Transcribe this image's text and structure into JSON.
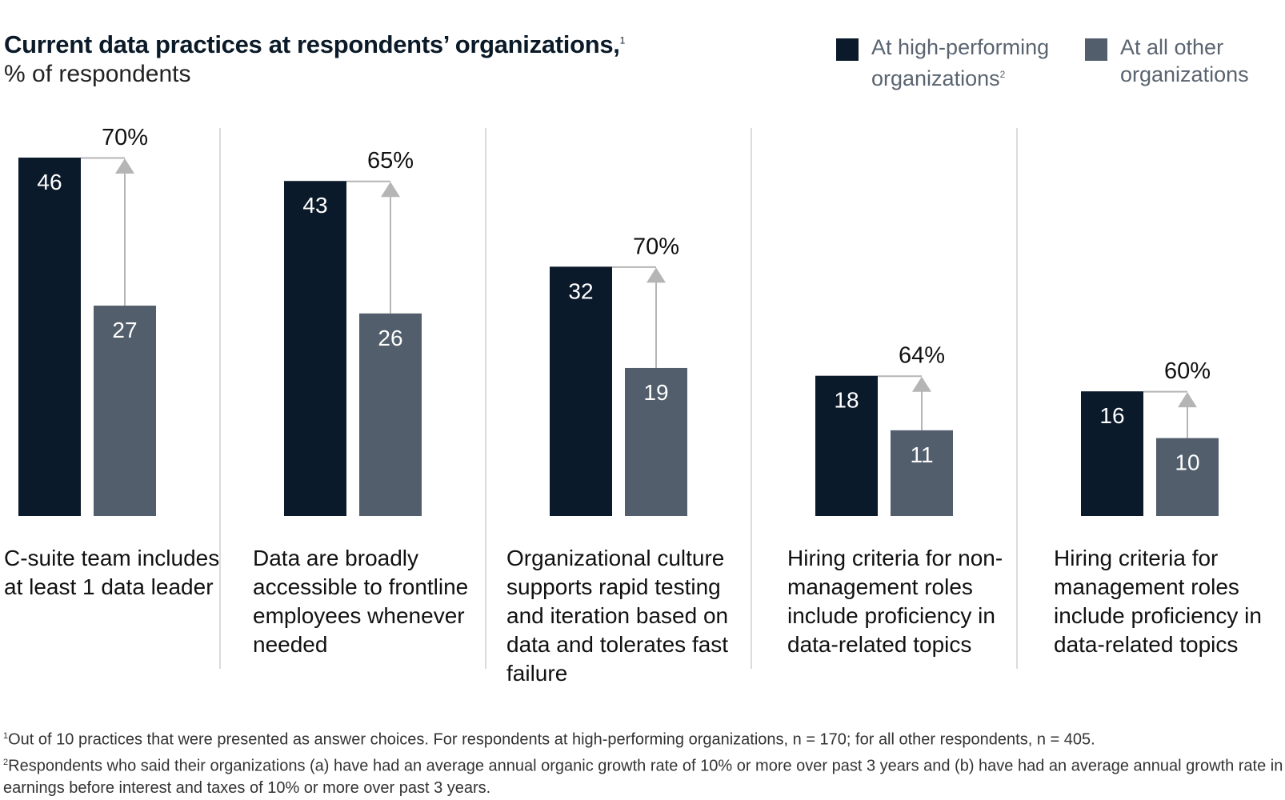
{
  "title": "Current data practices at respondents’ organizations,",
  "title_footnote_mark": "1",
  "subtitle": "% of respondents",
  "legend": [
    {
      "label": "At high-performing organizations",
      "footnote_mark": "2",
      "color": "#0b1a2b"
    },
    {
      "label": "At all other organizations",
      "footnote_mark": "",
      "color": "#525e6b"
    }
  ],
  "colors": {
    "high": "#0b1a2b",
    "other": "#525e6b",
    "arrow": "#b5b5b5",
    "divider": "#cfcfcf"
  },
  "chart_data": {
    "type": "bar",
    "categories": [
      "C-suite team includes at least 1 data leader",
      "Data are broadly accessible to frontline employees whenever needed",
      "Organizational culture supports rapid testing and iteration based on data and tolerates fast failure",
      "Hiring criteria for non-management roles include proficiency in data-related topics",
      "Hiring criteria for management roles include proficiency in data-related topics"
    ],
    "series": [
      {
        "name": "At high-performing organizations",
        "values": [
          46,
          43,
          32,
          18,
          16
        ]
      },
      {
        "name": "At all other organizations",
        "values": [
          27,
          26,
          19,
          11,
          10
        ]
      }
    ],
    "difference_labels": [
      "70%",
      "65%",
      "70%",
      "64%",
      "60%"
    ],
    "ylabel": "% of respondents",
    "ylim": [
      0,
      46
    ],
    "legend_position": "top-right",
    "grid": false
  },
  "footnotes": [
    {
      "mark": "1",
      "text": "Out of 10 practices that were presented as answer choices. For respondents at high-performing organizations, n = 170; for all other respondents, n = 405."
    },
    {
      "mark": "2",
      "text": "Respondents who said their organizations (a) have had an average annual organic growth rate of 10% or more over past 3 years and (b) have had an average annual growth rate in earnings before interest and taxes of 10% or more over past 3 years."
    }
  ]
}
